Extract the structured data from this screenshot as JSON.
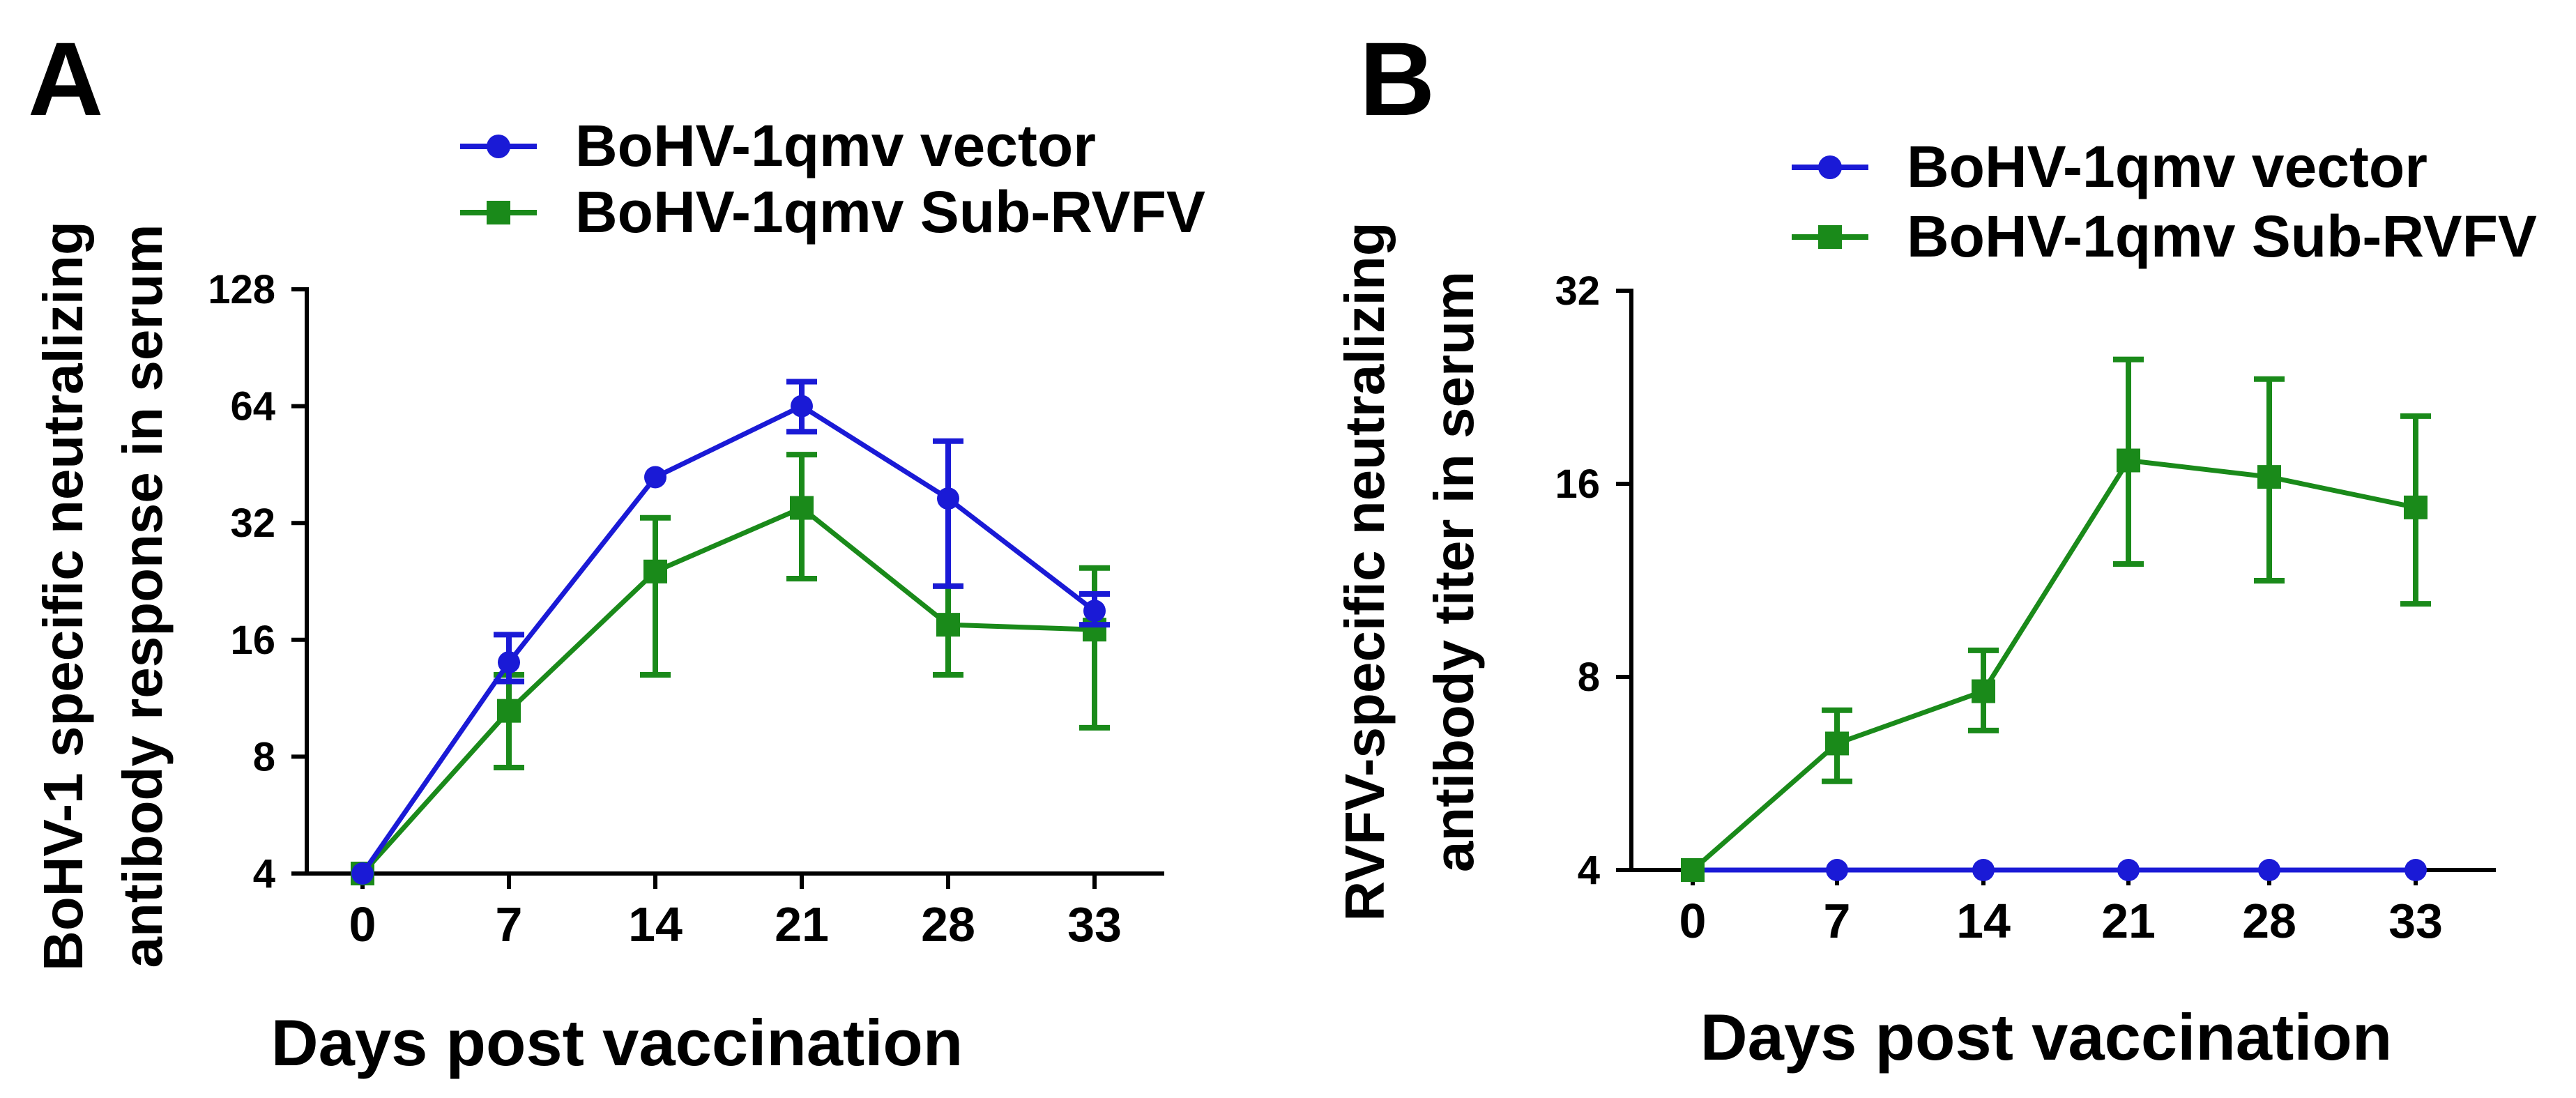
{
  "colors": {
    "vector": "#1a1ad6",
    "sub_rvfv": "#1a8a1a",
    "axis": "#000000"
  },
  "chart_data": [
    {
      "panel": "A",
      "type": "line",
      "ylabel": [
        "BoHV-1 specific neutralizing",
        "antibody response in serum"
      ],
      "xlabel": "Days post vaccination",
      "x": [
        0,
        7,
        14,
        21,
        28,
        33
      ],
      "x_tick_labels": [
        "0",
        "7",
        "14",
        "21",
        "28",
        "33"
      ],
      "y_scale": "log2",
      "ylim": [
        4,
        128
      ],
      "y_ticks": [
        4,
        8,
        16,
        32,
        64,
        128
      ],
      "y_tick_labels": [
        "4",
        "8",
        "16",
        "32",
        "64",
        "128"
      ],
      "legend": [
        "BoHV-1qmv vector",
        "BoHV-1qmv Sub-RVFV"
      ],
      "series": [
        {
          "name": "BoHV-1qmv vector",
          "marker": "circle",
          "values": [
            4,
            14,
            42,
            64,
            37,
            19
          ],
          "err_low": [
            4,
            12.5,
            42,
            55,
            22,
            17.5
          ],
          "err_high": [
            4,
            16.5,
            42,
            74,
            52,
            21
          ]
        },
        {
          "name": "BoHV-1qmv Sub-RVFV",
          "marker": "square",
          "values": [
            4,
            10.5,
            24,
            35,
            17.5,
            17
          ],
          "err_low": [
            4,
            7.5,
            13,
            23,
            13,
            9.5
          ],
          "err_high": [
            4,
            13,
            33,
            48,
            22,
            24.5
          ]
        }
      ]
    },
    {
      "panel": "B",
      "type": "line",
      "ylabel": [
        "RVFV-specific neutralizing",
        "antibody titer in serum"
      ],
      "xlabel": "Days post vaccination",
      "x": [
        0,
        7,
        14,
        21,
        28,
        33
      ],
      "x_tick_labels": [
        "0",
        "7",
        "14",
        "21",
        "28",
        "33"
      ],
      "y_scale": "log2",
      "ylim": [
        4,
        32
      ],
      "y_ticks": [
        4,
        8,
        16,
        32
      ],
      "y_tick_labels": [
        "4",
        "8",
        "16",
        "32"
      ],
      "legend": [
        "BoHV-1qmv vector",
        "BoHV-1qmv Sub-RVFV"
      ],
      "series": [
        {
          "name": "BoHV-1qmv vector",
          "marker": "circle",
          "values": [
            4,
            4,
            4,
            4,
            4,
            4
          ],
          "err_low": [
            4,
            4,
            4,
            4,
            4,
            4
          ],
          "err_high": [
            4,
            4,
            4,
            4,
            4,
            4
          ]
        },
        {
          "name": "BoHV-1qmv Sub-RVFV",
          "marker": "square",
          "values": [
            4,
            6.3,
            7.6,
            17.4,
            16.4,
            14.7
          ],
          "err_low": [
            4,
            5.5,
            6.6,
            12,
            11.3,
            10.4
          ],
          "err_high": [
            4,
            7.1,
            8.8,
            25,
            23.3,
            20.4
          ]
        }
      ]
    }
  ]
}
